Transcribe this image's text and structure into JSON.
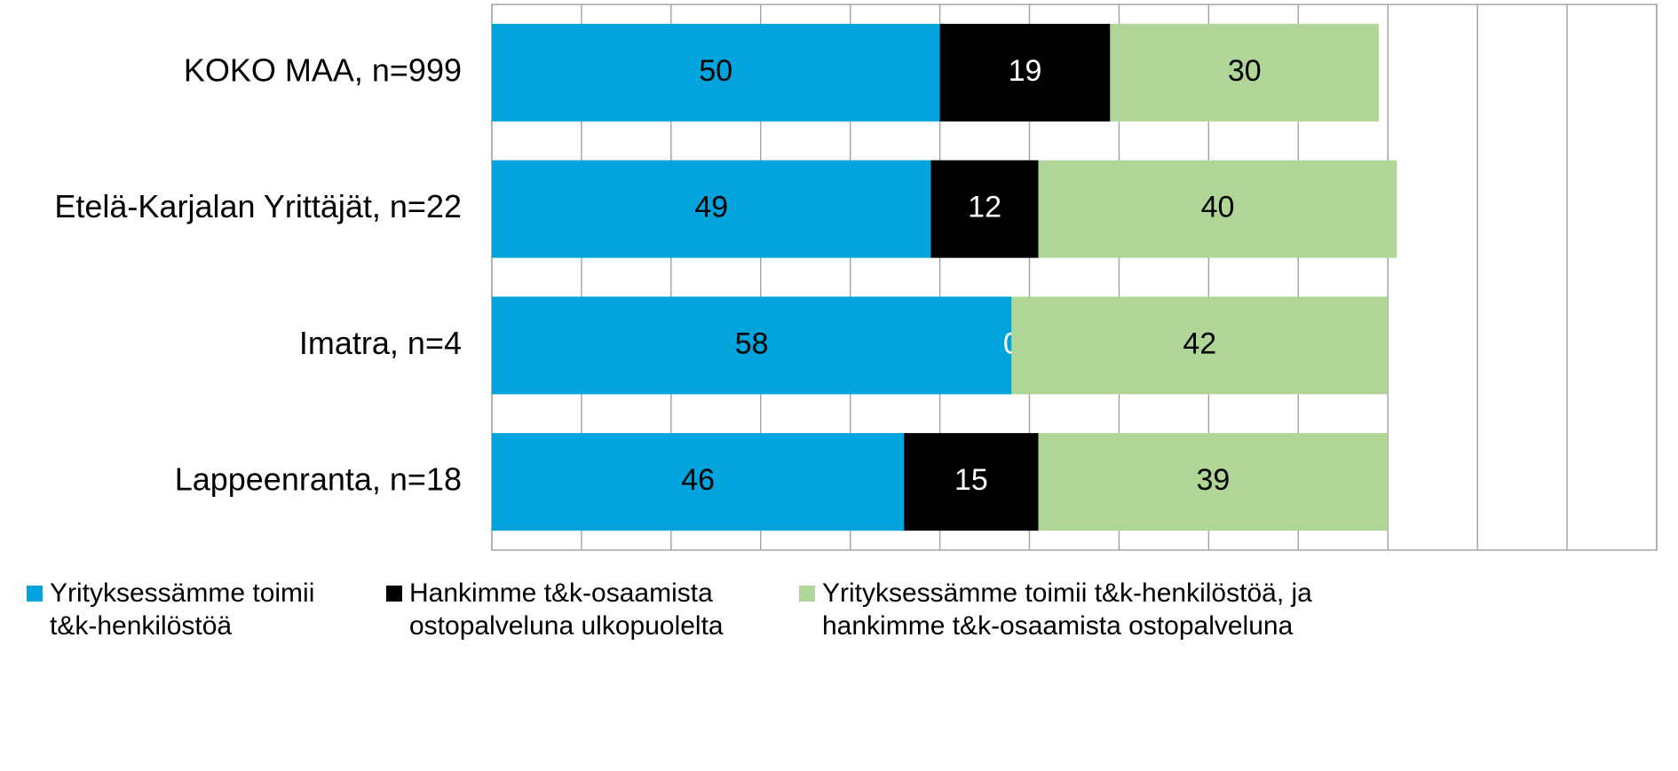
{
  "chart_data": {
    "type": "stacked-bar-horizontal",
    "categories": [
      "KOKO MAA, n=999",
      "Etelä-Karjalan Yrittäjät, n=22",
      "Imatra, n=4",
      "Lappeenranta, n=18"
    ],
    "series": [
      {
        "name": "Yrityksessämme toimii t&k-henkilöstöä",
        "color": "#00a3dc",
        "label_color": "#000000",
        "values": [
          50,
          49,
          58,
          46
        ]
      },
      {
        "name": "Hankimme t&k-osaamista ostopalveluna ulkopuolelta",
        "color": "#000000",
        "label_color": "#ffffff",
        "values": [
          19,
          12,
          0,
          15
        ]
      },
      {
        "name": "Yrityksessämme toimii t&k-henkilöstöä, ja hankimme t&k-osaamista ostopalveluna",
        "color": "#afd597",
        "label_color": "#000000",
        "values": [
          30,
          40,
          42,
          39
        ]
      }
    ],
    "xlim": [
      0,
      130
    ],
    "xticks": [
      0,
      10,
      20,
      30,
      40,
      50,
      60,
      70,
      80,
      90,
      100,
      110,
      120,
      130
    ],
    "grid": true,
    "legend": "bottom"
  }
}
